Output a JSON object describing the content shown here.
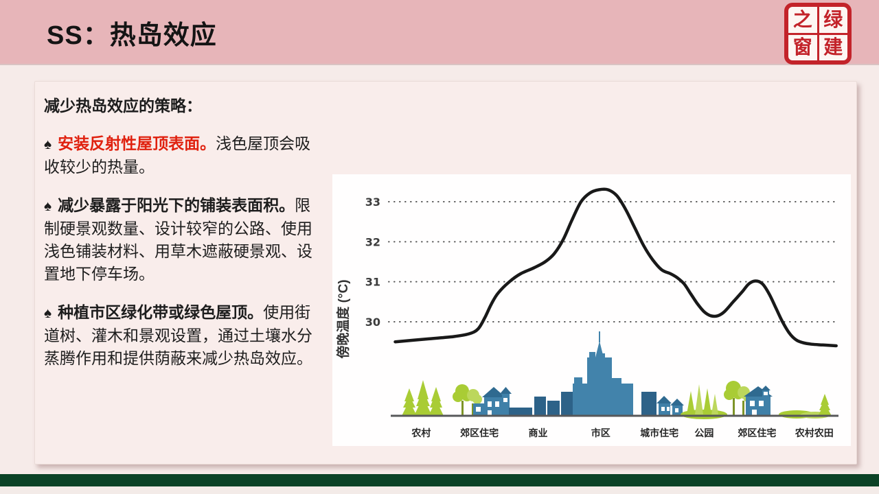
{
  "slide": {
    "title": "SS：热岛效应",
    "logo_chars": [
      "之",
      "绿",
      "窗",
      "建"
    ]
  },
  "content": {
    "heading": "减少热岛效应的策略：",
    "bullets": [
      {
        "marker": "♠",
        "lead": "安装反射性屋顶表面。",
        "rest": "浅色屋顶会吸收较少的热量。",
        "lead_style": "red-bold"
      },
      {
        "marker": "♠",
        "lead": "减少暴露于阳光下的铺装表面积。",
        "rest": "限制硬景观数量、设计较窄的公路、使用浅色铺装材料、用草木遮蔽硬景观、设置地下停车场。",
        "lead_style": "bold"
      },
      {
        "marker": "♠",
        "lead": "种植市区绿化带或绿色屋顶。",
        "rest": "使用街道树、灌木和景观设置，通过土壤水分蒸腾作用和提供荫蔽来减少热岛效应。",
        "lead_style": "bold"
      }
    ]
  },
  "chart_data": {
    "type": "line",
    "title": "",
    "xlabel": "",
    "ylabel": "傍晚温度 (°C)",
    "yticks": [
      30,
      31,
      32,
      33
    ],
    "ylim": [
      29.2,
      33.7
    ],
    "grid": "horizontal-dotted",
    "legend": null,
    "curve_color": "#191919",
    "categories": [
      "农村",
      "郊区住宅",
      "商业",
      "市区",
      "城市住宅",
      "公园",
      "郊区住宅",
      "农村农田"
    ],
    "category_x": [
      6.8,
      19.8,
      32.9,
      46.9,
      60,
      70,
      81.8,
      94.6
    ],
    "points": [
      [
        1,
        29.5
      ],
      [
        8,
        29.57
      ],
      [
        14,
        29.63
      ],
      [
        17.5,
        29.7
      ],
      [
        19.5,
        29.82
      ],
      [
        21,
        30.1
      ],
      [
        22.5,
        30.45
      ],
      [
        24,
        30.72
      ],
      [
        26.5,
        31.0
      ],
      [
        29,
        31.2
      ],
      [
        32,
        31.35
      ],
      [
        34.5,
        31.5
      ],
      [
        36.5,
        31.7
      ],
      [
        38.5,
        32.05
      ],
      [
        40.5,
        32.55
      ],
      [
        42.5,
        33.0
      ],
      [
        44.5,
        33.22
      ],
      [
        46.5,
        33.3
      ],
      [
        48.5,
        33.3
      ],
      [
        50.5,
        33.15
      ],
      [
        52.5,
        32.8
      ],
      [
        54.5,
        32.35
      ],
      [
        56.5,
        31.9
      ],
      [
        58.5,
        31.55
      ],
      [
        60.5,
        31.3
      ],
      [
        62.5,
        31.2
      ],
      [
        64,
        31.1
      ],
      [
        65.5,
        30.95
      ],
      [
        67,
        30.7
      ],
      [
        68.5,
        30.45
      ],
      [
        70,
        30.25
      ],
      [
        71.5,
        30.15
      ],
      [
        73,
        30.15
      ],
      [
        74.5,
        30.25
      ],
      [
        76.5,
        30.5
      ],
      [
        78.5,
        30.75
      ],
      [
        80,
        30.95
      ],
      [
        81.5,
        31.02
      ],
      [
        83,
        30.95
      ],
      [
        84.5,
        30.7
      ],
      [
        86,
        30.35
      ],
      [
        87.5,
        30.0
      ],
      [
        89,
        29.72
      ],
      [
        90.5,
        29.55
      ],
      [
        92,
        29.48
      ],
      [
        94,
        29.44
      ],
      [
        96.5,
        29.42
      ],
      [
        99.5,
        29.4
      ]
    ]
  },
  "colors": {
    "header_pink": "#e7b5b9",
    "body_bg": "#f6ebe9",
    "card_bg": "#f9edeb",
    "accent_red": "#e0210f",
    "footer_green": "#0b4226",
    "seal_red": "#c3232a",
    "building_blue": "#4283ab",
    "building_dark_blue": "#2d6288",
    "tree_green": "#a9cc35"
  }
}
